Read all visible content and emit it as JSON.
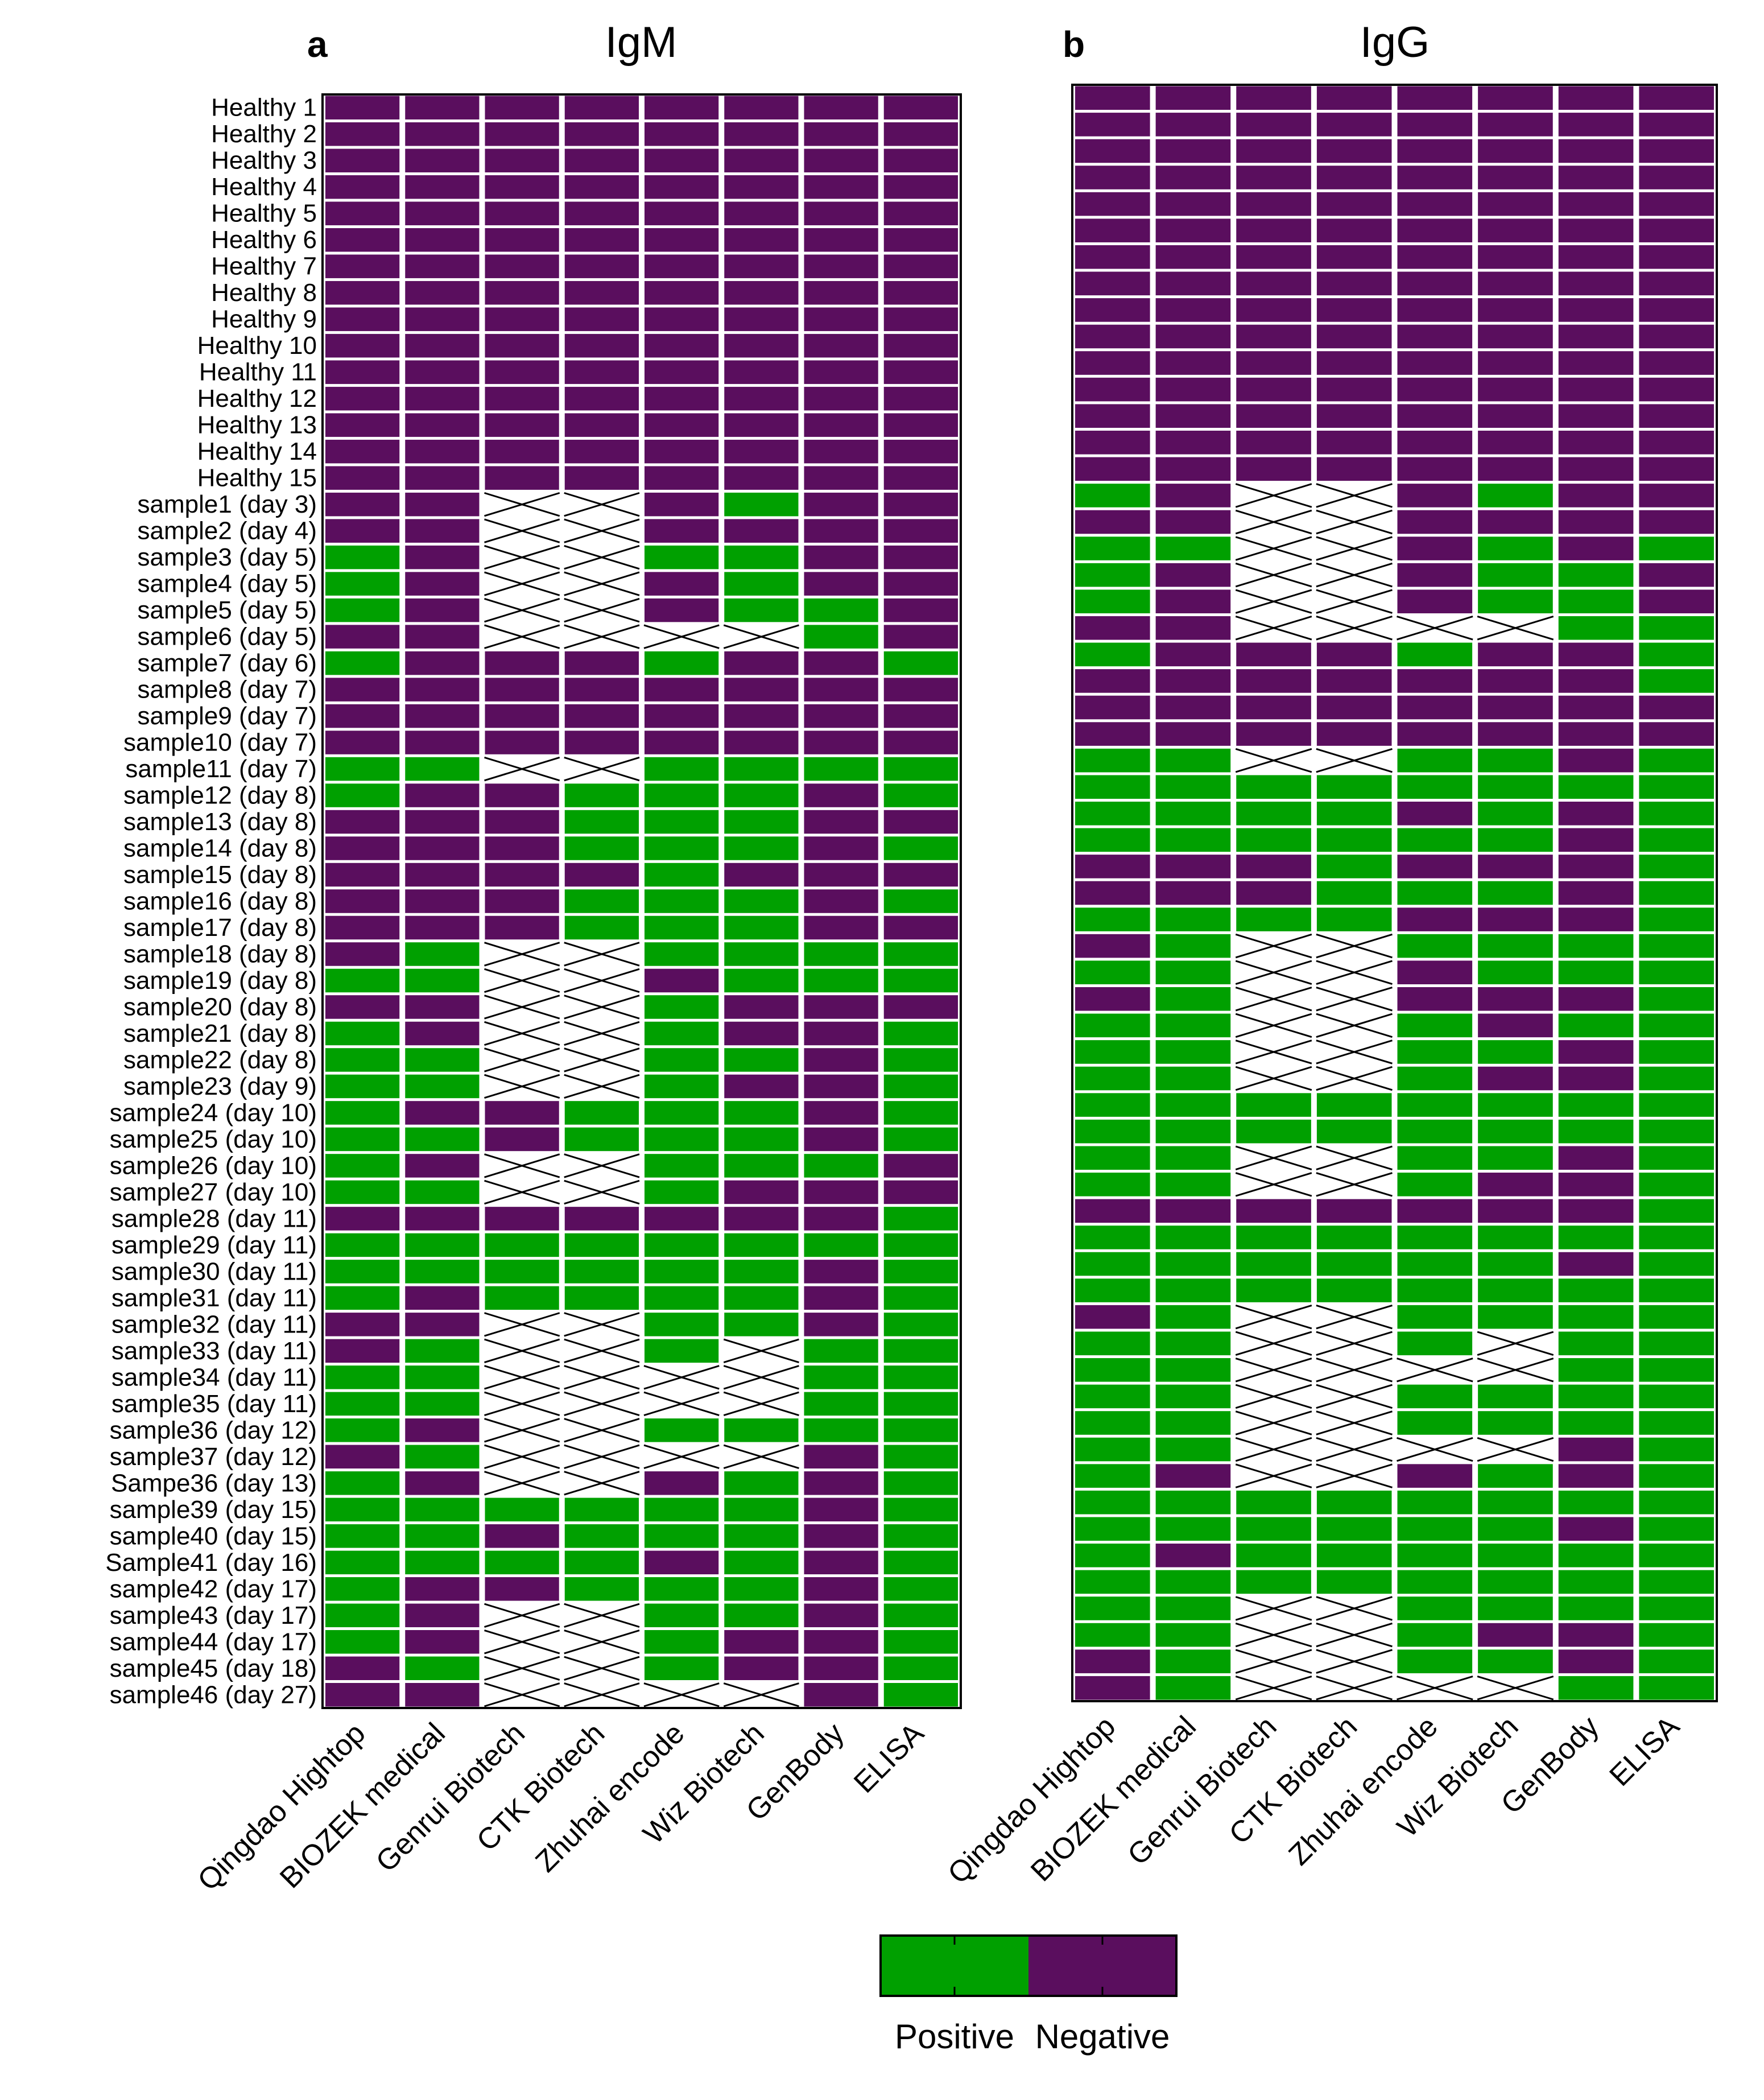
{
  "colors": {
    "positive": "#00a000",
    "negative": "#5a0e5e",
    "gap": "#ffffff",
    "frame": "#000000",
    "cross": "#000000"
  },
  "legend": {
    "positive_label": "Positive",
    "negative_label": "Negative"
  },
  "chart_data": [
    {
      "type": "heatmap",
      "panel_letter": "a",
      "title": "IgM",
      "value_legend": {
        "P": "Positive",
        "N": "Negative",
        "X": "not available (crossed cell)"
      },
      "columns": [
        "Qingdao Hightop",
        "BIOZEK medical",
        "Genrui Biotech",
        "CTK Biotech",
        "Zhuhai encode",
        "Wiz Biotech",
        "GenBody",
        "ELISA"
      ],
      "rows": [
        "Healthy 1",
        "Healthy 2",
        "Healthy 3",
        "Healthy 4",
        "Healthy 5",
        "Healthy 6",
        "Healthy 7",
        "Healthy 8",
        "Healthy 9",
        "Healthy 10",
        "Healthy 11",
        "Healthy 12",
        "Healthy 13",
        "Healthy 14",
        "Healthy 15",
        "sample1 (day 3)",
        "sample2 (day 4)",
        "sample3 (day 5)",
        "sample4 (day 5)",
        "sample5 (day 5)",
        "sample6 (day 5)",
        "sample7 (day 6)",
        "sample8 (day 7)",
        "sample9 (day 7)",
        "sample10 (day 7)",
        "sample11 (day 7)",
        "sample12 (day 8)",
        "sample13 (day 8)",
        "sample14 (day 8)",
        "sample15 (day 8)",
        "sample16 (day 8)",
        "sample17 (day 8)",
        "sample18 (day 8)",
        "sample19 (day 8)",
        "sample20 (day 8)",
        "sample21 (day 8)",
        "sample22 (day 8)",
        "sample23 (day 9)",
        "sample24 (day 10)",
        "sample25 (day 10)",
        "sample26 (day 10)",
        "sample27 (day 10)",
        "sample28 (day 11)",
        "sample29 (day 11)",
        "sample30 (day 11)",
        "sample31 (day 11)",
        "sample32 (day 11)",
        "sample33 (day 11)",
        "sample34 (day 11)",
        "sample35 (day 11)",
        "sample36 (day 12)",
        "sample37 (day 12)",
        "Sampe36 (day 13)",
        "sample39 (day 15)",
        "sample40 (day 15)",
        "Sample41 (day 16)",
        "sample42 (day 17)",
        "sample43 (day 17)",
        "sample44 (day 17)",
        "sample45 (day 18)",
        "sample46 (day 27)"
      ],
      "values": [
        "NNNNNNNN",
        "NNNNNNNN",
        "NNNNNNNN",
        "NNNNNNNN",
        "NNNNNNNN",
        "NNNNNNNN",
        "NNNNNNNN",
        "NNNNNNNN",
        "NNNNNNNN",
        "NNNNNNNN",
        "NNNNNNNN",
        "NNNNNNNN",
        "NNNNNNNN",
        "NNNNNNNN",
        "NNNNNNNN",
        "NNXXNPNN",
        "NNXXNNNN",
        "PNXXPPNN",
        "PNXXNPNN",
        "PNXXNPPN",
        "NNXXXXPN",
        "PNNNPNNP",
        "NNNNNNNN",
        "NNNNNNNN",
        "NNNNNNNN",
        "PPXXPPPP",
        "PNNPPPNP",
        "NNNPPPNN",
        "NNNPPPNP",
        "NNNNPNNN",
        "NNNPPPNP",
        "NNNPPPNN",
        "NPXXPPPP",
        "PPXXNPPP",
        "NNXXPNNN",
        "PNXXPNNP",
        "PPXXPPNP",
        "PPXXPNNP",
        "PNNPPPNP",
        "PPNPPPNP",
        "PNXXPPPN",
        "PPXXPNNN",
        "NNNNNNNP",
        "PPPPPPPP",
        "PPPPPPNP",
        "PNPPPPNP",
        "NNXXPPNP",
        "NPXXPXPP",
        "PPXXXXPP",
        "PPXXXXPP",
        "PNXXPPPP",
        "NPXXXXNP",
        "PNXXNPNP",
        "PPPPPPNP",
        "PPNPPPNP",
        "PPPPNPNP",
        "PNNPPPNP",
        "PNXXPPNP",
        "PNXXPNNP",
        "NPXXPNNP",
        "NNXXXXNP"
      ]
    },
    {
      "type": "heatmap",
      "panel_letter": "b",
      "title": "IgG",
      "value_legend": {
        "P": "Positive",
        "N": "Negative",
        "X": "not available (crossed cell)"
      },
      "columns": [
        "Qingdao Hightop",
        "BIOZEK medical",
        "Genrui Biotech",
        "CTK Biotech",
        "Zhuhai encode",
        "Wiz Biotech",
        "GenBody",
        "ELISA"
      ],
      "values": [
        "NNNNNNNN",
        "NNNNNNNN",
        "NNNNNNNN",
        "NNNNNNNN",
        "NNNNNNNN",
        "NNNNNNNN",
        "NNNNNNNN",
        "NNNNNNNN",
        "NNNNNNNN",
        "NNNNNNNN",
        "NNNNNNNN",
        "NNNNNNNN",
        "NNNNNNNN",
        "NNNNNNNN",
        "NNNNNNNN",
        "PNXXNPNN",
        "NNXXNNNN",
        "PPXXNPNP",
        "PNXXNPPN",
        "PNXXNPPN",
        "NNXXXXPP",
        "PNNNPNNP",
        "NNNNNNNP",
        "NNNNNNNN",
        "NNNNNNNN",
        "PPXXPPNP",
        "PPPPPPPP",
        "PPPPNPNP",
        "PPPPPPNP",
        "NNNPNNNP",
        "NNNPPPNP",
        "PPPPNNNP",
        "NPXXPPPP",
        "PPXXNPPP",
        "NPXXNNNP",
        "PPXXPNPP",
        "PPXXPPNP",
        "PPXXPNNP",
        "PPPPPPPP",
        "PPPPPPPP",
        "PPXXPPNP",
        "PPXXPNNP",
        "NNNNNNNP",
        "PPPPPPPP",
        "PPPPPPNP",
        "PPPPPPPP",
        "NPXXPPPP",
        "PPXXPXPP",
        "PPXXXXPP",
        "PPXXPPPP",
        "PPXXPPPP",
        "PPXXXXNP",
        "PNXXNPNP",
        "PPPPPPPP",
        "PPPPPPNP",
        "PNPPPPPP",
        "PPPPPPPP",
        "PPXXPPPP",
        "PPXXPNNP",
        "NPXXPPNP",
        "NPXXXXPP"
      ]
    }
  ]
}
